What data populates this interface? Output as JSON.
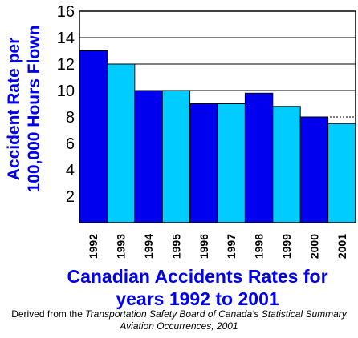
{
  "chart_data": {
    "type": "bar",
    "title": "Canadian Accidents Rates for years 1992 to 2001",
    "title_lines": [
      "Canadian Accidents Rates for",
      "years 1992 to 2001"
    ],
    "ylabel": "Accident Rate per 100,000 Hours Flown",
    "ylabel_lines": [
      "Accident Rate per",
      "100,000 Hours Flown"
    ],
    "xlabel": "",
    "categories": [
      "1992",
      "1993",
      "1994",
      "1995",
      "1996",
      "1997",
      "1998",
      "1999",
      "2000",
      "2001"
    ],
    "values": [
      13.0,
      12.0,
      10.0,
      10.0,
      9.0,
      9.0,
      9.8,
      8.8,
      8.0,
      7.5
    ],
    "ylim": [
      0,
      16
    ],
    "yticks": [
      2,
      4,
      6,
      8,
      10,
      12,
      14,
      16
    ],
    "grid": true,
    "grid_style": "dashed below 10, solid from 10 upward",
    "legend": "none",
    "bar_colors": [
      "#0000ee",
      "#00ccff"
    ]
  },
  "colors": {
    "title": "#0000ee",
    "ylabel": "#0000ee",
    "axis": "#000000",
    "bar_dark": "#0000ee",
    "bar_light": "#00ccff"
  },
  "source": {
    "line1_prefix": "Derived from the ",
    "line1_italic": "Transportation Safety Board of Canada's Statistical Summary",
    "line2_italic": "Aviation Occurrences, 2001"
  }
}
